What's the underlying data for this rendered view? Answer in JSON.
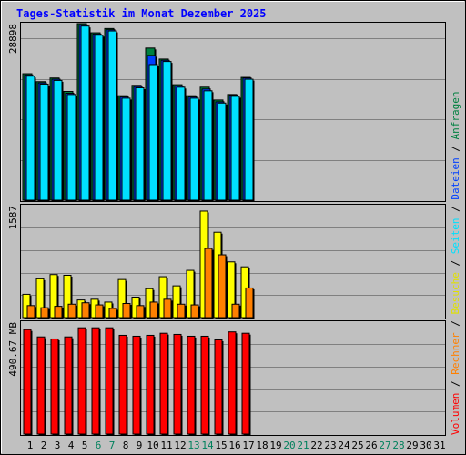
{
  "title": "Tages-Statistik im Monat Dezember 2025",
  "colors": {
    "background": "#C0C0C0",
    "title_text": "#0000FF",
    "gridline": "#808080",
    "hits": "#008040",
    "files": "#0040FF",
    "pages": "#00E0FF",
    "visits": "#FFFF00",
    "sites": "#FF8000",
    "kbytes": "#FF0000",
    "day_normal": "#000000",
    "day_weekend": "#00805C"
  },
  "legend": {
    "volume": "Volumen",
    "sites": "Rechner",
    "visits": "Besuche",
    "pages": "Seiten",
    "files": "Dateien",
    "hits": "Anfragen",
    "sep": "/"
  },
  "chart_data": {
    "type": "bar",
    "categories": [
      "1",
      "2",
      "3",
      "4",
      "5",
      "6",
      "7",
      "8",
      "9",
      "10",
      "11",
      "12",
      "13",
      "14",
      "15",
      "16",
      "17",
      "18",
      "19",
      "20",
      "21",
      "22",
      "23",
      "24",
      "25",
      "26",
      "27",
      "28",
      "29",
      "30",
      "31"
    ],
    "weekend_days": [
      "6",
      "7",
      "13",
      "14",
      "20",
      "21",
      "27",
      "28"
    ],
    "panels": [
      {
        "id": "requests",
        "y_max_label": "28898",
        "ylim": [
          0,
          28898
        ],
        "series": [
          {
            "name": "Anfragen",
            "values": [
              20700,
              19400,
              20000,
              17800,
              28900,
              27400,
              28100,
              17100,
              18800,
              24900,
              23100,
              18900,
              17100,
              18500,
              16400,
              17300,
              20100,
              0,
              0,
              0,
              0,
              0,
              0,
              0,
              0,
              0,
              0,
              0,
              0,
              0,
              0
            ]
          },
          {
            "name": "Dateien",
            "values": [
              20500,
              19200,
              19800,
              17500,
              28700,
              27200,
              27900,
              16900,
              18600,
              23700,
              22900,
              18700,
              16900,
              18200,
              16100,
              17200,
              20000,
              0,
              0,
              0,
              0,
              0,
              0,
              0,
              0,
              0,
              0,
              0,
              0,
              0,
              0
            ]
          },
          {
            "name": "Seiten",
            "values": [
              20300,
              19000,
              19600,
              17300,
              28500,
              27000,
              27700,
              16700,
              18400,
              22200,
              22700,
              18500,
              16700,
              17900,
              15900,
              17000,
              19800,
              0,
              0,
              0,
              0,
              0,
              0,
              0,
              0,
              0,
              0,
              0,
              0,
              0,
              0
            ]
          }
        ]
      },
      {
        "id": "visits",
        "y_max_label": "1587",
        "ylim": [
          0,
          1587
        ],
        "series": [
          {
            "name": "Besuche",
            "values": [
              330,
              550,
              610,
              600,
              250,
              260,
              220,
              540,
              290,
              410,
              580,
              450,
              670,
              1510,
              1210,
              790,
              720,
              0,
              0,
              0,
              0,
              0,
              0,
              0,
              0,
              0,
              0,
              0,
              0,
              0,
              0
            ]
          },
          {
            "name": "Rechner",
            "values": [
              170,
              140,
              160,
              190,
              210,
              180,
              130,
              200,
              170,
              220,
              260,
              190,
              180,
              980,
              890,
              190,
              420,
              0,
              0,
              0,
              0,
              0,
              0,
              0,
              0,
              0,
              0,
              0,
              0,
              0,
              0
            ]
          }
        ]
      },
      {
        "id": "volume",
        "y_max_label": "490.67 MB",
        "ylim": [
          0,
          490.67
        ],
        "series": [
          {
            "name": "Volumen",
            "values": [
              458,
              426,
              417,
              426,
              466,
              466,
              466,
              433,
              429,
              433,
              442,
              437,
              429,
              429,
              413,
              448,
              442,
              0,
              0,
              0,
              0,
              0,
              0,
              0,
              0,
              0,
              0,
              0,
              0,
              0,
              0
            ]
          }
        ]
      }
    ]
  }
}
